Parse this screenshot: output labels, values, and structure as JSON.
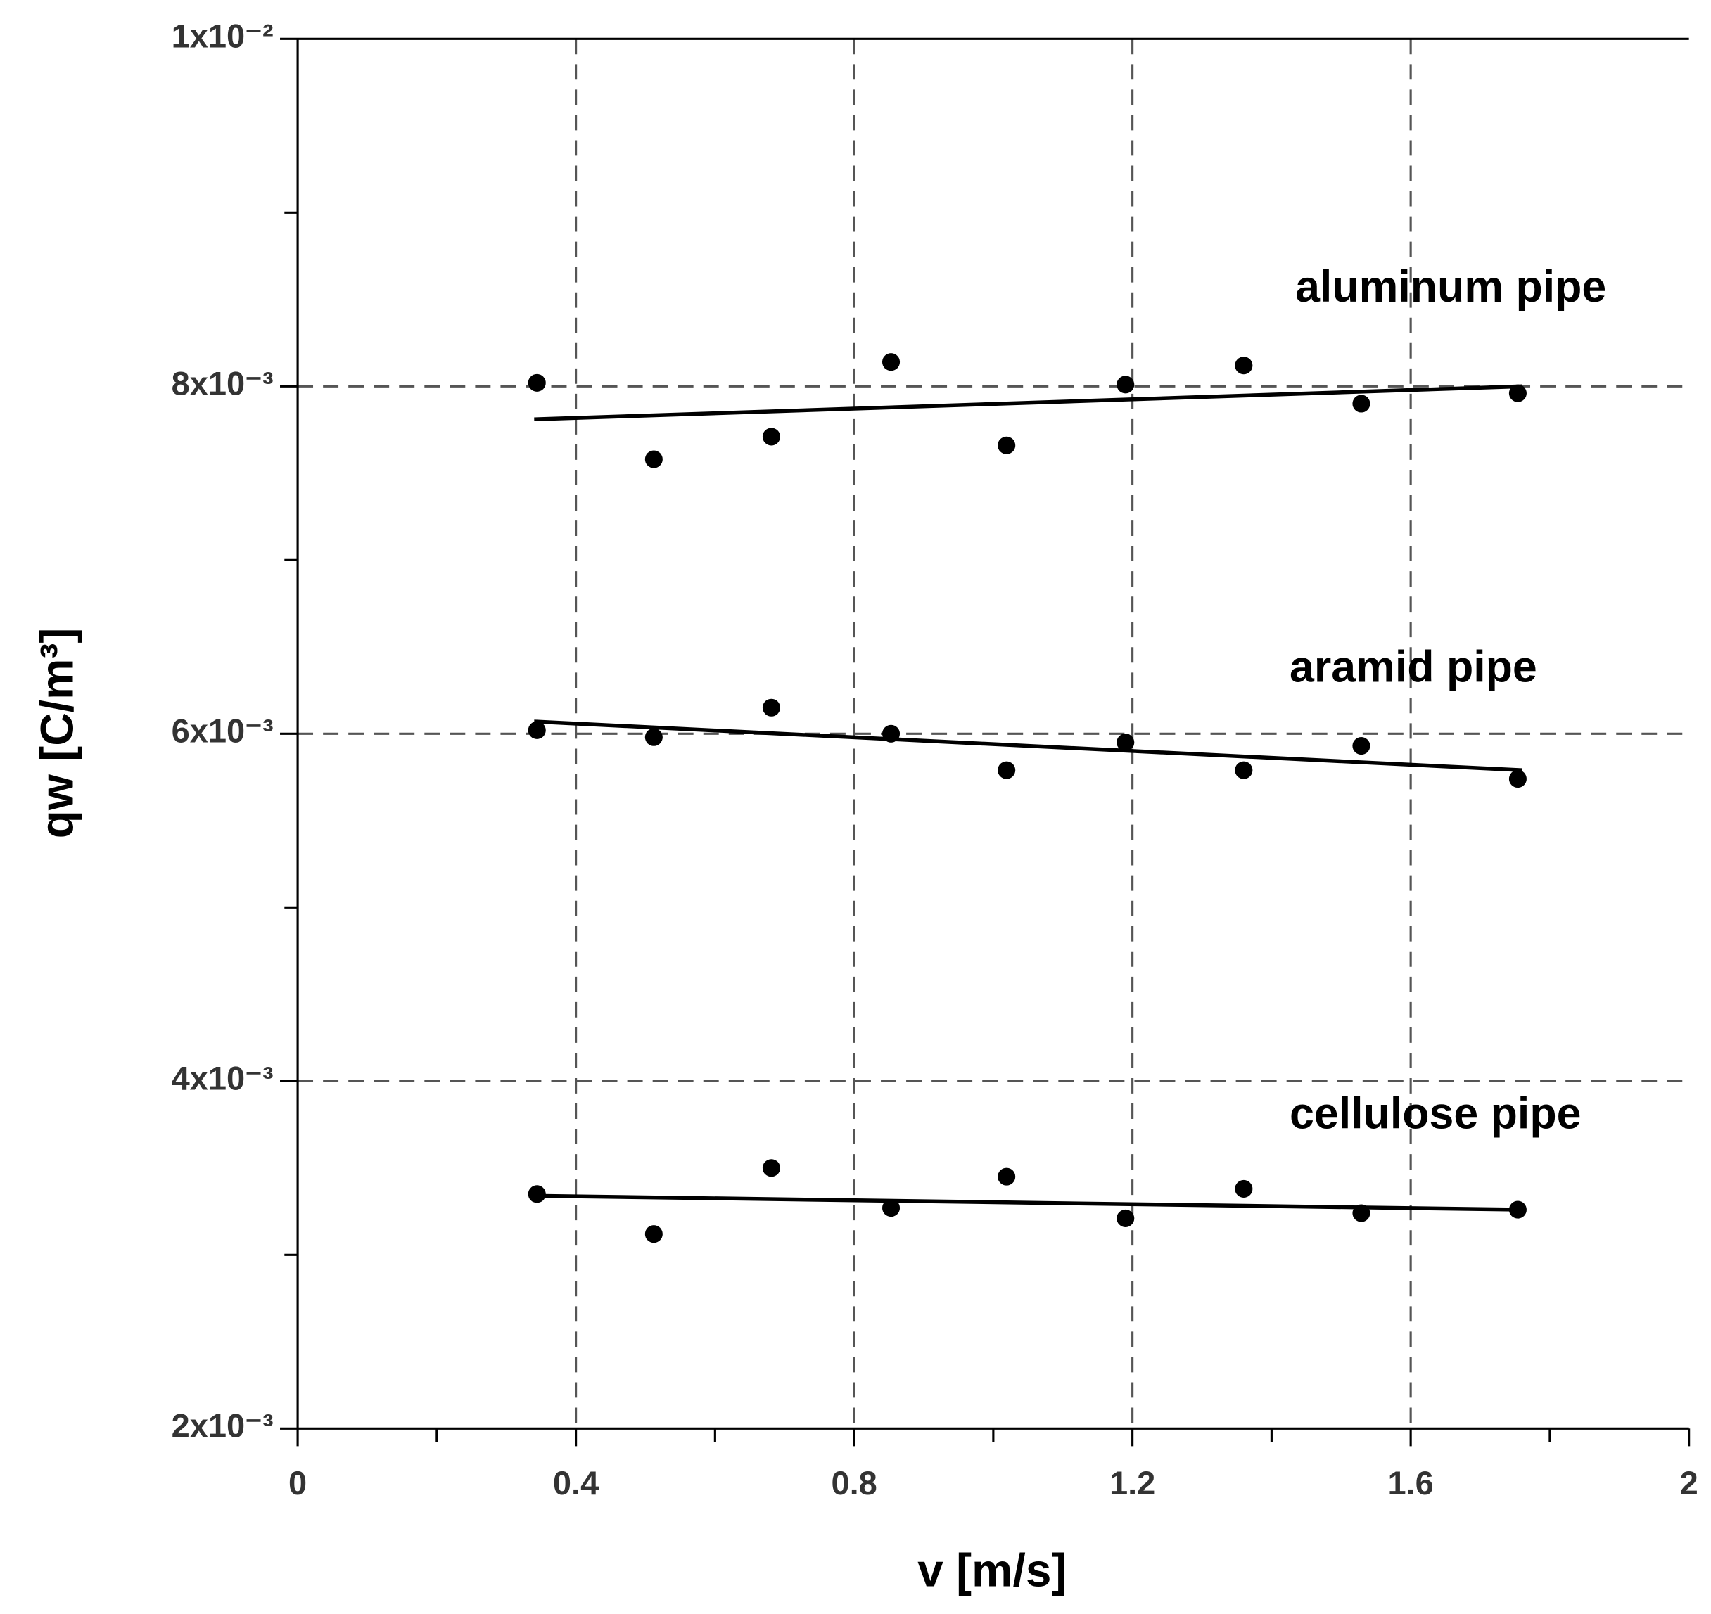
{
  "chart_data": {
    "type": "scatter",
    "xlabel": "v [m/s]",
    "ylabel": "qw [C/m³]",
    "xlim": [
      0,
      2
    ],
    "xticks": [
      0,
      0.4,
      0.8,
      1.2,
      1.6,
      2
    ],
    "xminor_ticks": [
      0.2,
      0.6,
      1.0,
      1.4,
      1.8
    ],
    "ylim": [
      0.002,
      0.01
    ],
    "yticks": [
      {
        "value": 0.002,
        "label": "2x10⁻³"
      },
      {
        "value": 0.004,
        "label": "4x10⁻³"
      },
      {
        "value": 0.006,
        "label": "6x10⁻³"
      },
      {
        "value": 0.008,
        "label": "8x10⁻³"
      },
      {
        "value": 0.01,
        "label": "1x10⁻²"
      }
    ],
    "yminor_ticks": [
      0.003,
      0.005,
      0.007,
      0.009
    ],
    "grid": true,
    "color": "#000000",
    "x": [
      0.344,
      0.512,
      0.681,
      0.853,
      1.019,
      1.19,
      1.36,
      1.529,
      1.754
    ],
    "series": [
      {
        "name": "aluminum pipe",
        "color": "#000000",
        "values": [
          0.00802,
          0.00758,
          0.00771,
          0.00814,
          0.00766,
          0.00801,
          0.00812,
          0.0079,
          0.00796
        ],
        "fit": {
          "x": [
            0.34,
            1.76
          ],
          "values": [
            0.00781,
            0.008
          ]
        }
      },
      {
        "name": "aramid pipe",
        "color": "#000000",
        "values": [
          0.00602,
          0.00598,
          0.00615,
          0.006,
          0.00579,
          0.00595,
          0.00579,
          0.00593,
          0.00574
        ],
        "fit": {
          "x": [
            0.34,
            1.76
          ],
          "values": [
            0.00607,
            0.00579
          ]
        }
      },
      {
        "name": "cellulose pipe",
        "color": "#000000",
        "values": [
          0.00335,
          0.00312,
          0.0035,
          0.00327,
          0.00345,
          0.00321,
          0.00338,
          0.00324,
          0.00326
        ],
        "fit": {
          "x": [
            0.34,
            1.76
          ],
          "values": [
            0.00334,
            0.00326
          ]
        }
      }
    ]
  }
}
